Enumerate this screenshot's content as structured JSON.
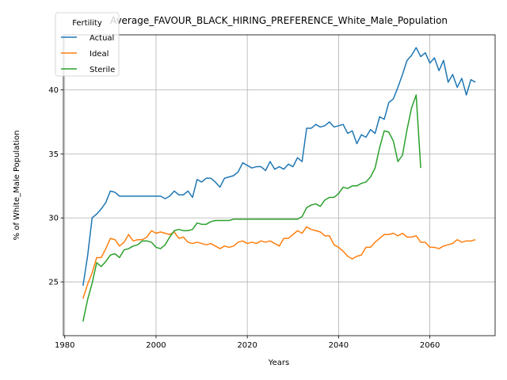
{
  "chart_data": {
    "type": "line",
    "title": "Average_FAVOUR_BLACK_HIRING_PREFERENCE_White_Male_Population",
    "xlabel": "Years",
    "ylabel": "% of White_Male Population",
    "xlim": [
      1979.7,
      2074.3
    ],
    "ylim": [
      20.8,
      44.3
    ],
    "xticks": [
      1980,
      2000,
      2020,
      2040,
      2060
    ],
    "yticks": [
      25,
      30,
      35,
      40
    ],
    "grid": true,
    "legend": {
      "title": "Fertility",
      "position": "upper-left"
    },
    "series": [
      {
        "name": "Actual",
        "color": "#1f77b4",
        "x": [
          1984,
          1985,
          1986,
          1987,
          1988,
          1989,
          1990,
          1991,
          1992,
          1993,
          1994,
          1995,
          1996,
          1997,
          1998,
          1999,
          2000,
          2001,
          2002,
          2003,
          2004,
          2005,
          2006,
          2007,
          2008,
          2009,
          2010,
          2011,
          2012,
          2013,
          2014,
          2015,
          2016,
          2017,
          2018,
          2019,
          2020,
          2021,
          2022,
          2023,
          2024,
          2025,
          2026,
          2027,
          2028,
          2029,
          2030,
          2031,
          2032,
          2033,
          2034,
          2035,
          2036,
          2037,
          2038,
          2039,
          2040,
          2041,
          2042,
          2043,
          2044,
          2045,
          2046,
          2047,
          2048,
          2049,
          2050,
          2051,
          2052,
          2053,
          2054,
          2055,
          2056,
          2057,
          2058,
          2059,
          2060,
          2061,
          2062,
          2063,
          2064,
          2065,
          2066,
          2067,
          2068,
          2069,
          2070
        ],
        "values": [
          24.7,
          27.0,
          30.0,
          30.3,
          30.7,
          31.2,
          32.1,
          32.0,
          31.7,
          31.7,
          31.7,
          31.7,
          31.7,
          31.7,
          31.7,
          31.7,
          31.7,
          31.7,
          31.5,
          31.7,
          32.1,
          31.8,
          31.8,
          32.1,
          31.6,
          33.0,
          32.8,
          33.1,
          33.1,
          32.8,
          32.4,
          33.1,
          33.2,
          33.3,
          33.6,
          34.3,
          34.1,
          33.9,
          34.0,
          34.0,
          33.7,
          34.4,
          33.8,
          34.0,
          33.8,
          34.2,
          34.0,
          34.7,
          34.4,
          37.0,
          37.0,
          37.3,
          37.1,
          37.2,
          37.5,
          37.1,
          37.2,
          37.3,
          36.6,
          36.8,
          35.8,
          36.5,
          36.3,
          36.9,
          36.6,
          37.9,
          37.7,
          39.0,
          39.3,
          40.2,
          41.2,
          42.3,
          42.7,
          43.3,
          42.6,
          42.9,
          42.1,
          42.5,
          41.5,
          42.3,
          40.6,
          41.2,
          40.2,
          40.9,
          39.6,
          40.8,
          40.6
        ]
      },
      {
        "name": "Ideal",
        "color": "#ff7f0e",
        "x": [
          1984,
          1985,
          1986,
          1987,
          1988,
          1989,
          1990,
          1991,
          1992,
          1993,
          1994,
          1995,
          1996,
          1997,
          1998,
          1999,
          2000,
          2001,
          2002,
          2003,
          2004,
          2005,
          2006,
          2007,
          2008,
          2009,
          2010,
          2011,
          2012,
          2013,
          2014,
          2015,
          2016,
          2017,
          2018,
          2019,
          2020,
          2021,
          2022,
          2023,
          2024,
          2025,
          2026,
          2027,
          2028,
          2029,
          2030,
          2031,
          2032,
          2033,
          2034,
          2035,
          2036,
          2037,
          2038,
          2039,
          2040,
          2041,
          2042,
          2043,
          2044,
          2045,
          2046,
          2047,
          2048,
          2049,
          2050,
          2051,
          2052,
          2053,
          2054,
          2055,
          2056,
          2057,
          2058,
          2059,
          2060,
          2061,
          2062,
          2063,
          2064,
          2065,
          2066,
          2067,
          2068,
          2069,
          2070
        ],
        "values": [
          23.7,
          24.8,
          25.7,
          26.9,
          26.9,
          27.6,
          28.4,
          28.3,
          27.8,
          28.1,
          28.7,
          28.2,
          28.3,
          28.3,
          28.5,
          29.0,
          28.8,
          28.9,
          28.8,
          28.7,
          28.9,
          28.4,
          28.5,
          28.1,
          28.0,
          28.1,
          28.0,
          27.9,
          28.0,
          27.8,
          27.6,
          27.8,
          27.7,
          27.8,
          28.1,
          28.2,
          28.0,
          28.1,
          28.0,
          28.2,
          28.1,
          28.2,
          28.0,
          27.8,
          28.4,
          28.4,
          28.7,
          29.0,
          28.8,
          29.3,
          29.1,
          29.0,
          28.9,
          28.6,
          28.6,
          27.9,
          27.7,
          27.4,
          27.0,
          26.8,
          27.0,
          27.1,
          27.7,
          27.7,
          28.1,
          28.4,
          28.7,
          28.7,
          28.8,
          28.6,
          28.8,
          28.5,
          28.5,
          28.6,
          28.1,
          28.1,
          27.7,
          27.7,
          27.6,
          27.8,
          27.9,
          28.0,
          28.3,
          28.1,
          28.2,
          28.2,
          28.3
        ]
      },
      {
        "name": "Sterile",
        "color": "#2ca02c",
        "x": [
          1984,
          1985,
          1986,
          1987,
          1988,
          1989,
          1990,
          1991,
          1992,
          1993,
          1994,
          1995,
          1996,
          1997,
          1998,
          1999,
          2000,
          2001,
          2002,
          2003,
          2004,
          2005,
          2006,
          2007,
          2008,
          2009,
          2010,
          2011,
          2012,
          2013,
          2014,
          2015,
          2016,
          2017,
          2018,
          2019,
          2020,
          2021,
          2022,
          2023,
          2024,
          2025,
          2026,
          2027,
          2028,
          2029,
          2030,
          2031,
          2032,
          2033,
          2034,
          2035,
          2036,
          2037,
          2038,
          2039,
          2040,
          2041,
          2042,
          2043,
          2044,
          2045,
          2046,
          2047,
          2048,
          2049,
          2050,
          2051,
          2052,
          2053,
          2054,
          2055,
          2056,
          2057,
          2058
        ],
        "values": [
          21.9,
          23.6,
          24.9,
          26.5,
          26.2,
          26.6,
          27.1,
          27.2,
          26.9,
          27.5,
          27.6,
          27.8,
          27.9,
          28.2,
          28.2,
          28.1,
          27.7,
          27.6,
          27.9,
          28.5,
          29.0,
          29.1,
          29.0,
          29.0,
          29.1,
          29.6,
          29.5,
          29.5,
          29.7,
          29.8,
          29.8,
          29.8,
          29.8,
          29.9,
          29.9,
          29.9,
          29.9,
          29.9,
          29.9,
          29.9,
          29.9,
          29.9,
          29.9,
          29.9,
          29.9,
          29.9,
          29.9,
          29.9,
          30.1,
          30.8,
          31.0,
          31.1,
          30.9,
          31.4,
          31.6,
          31.6,
          31.9,
          32.4,
          32.3,
          32.5,
          32.5,
          32.7,
          32.8,
          33.2,
          33.9,
          35.5,
          36.8,
          36.7,
          36.0,
          34.4,
          34.9,
          36.9,
          38.6,
          39.6,
          33.9
        ]
      }
    ]
  }
}
